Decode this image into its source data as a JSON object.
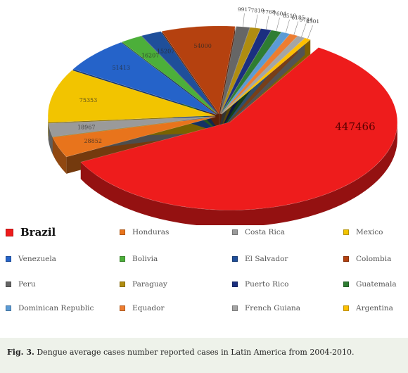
{
  "chart_data": {
    "type": "pie",
    "title": "",
    "categories": [
      "Brazil",
      "Honduras",
      "Costa Rica",
      "Mexico",
      "Venezuela",
      "Bolivia",
      "El Salvador",
      "Colombia",
      "Peru",
      "Paraguay",
      "Puerto Rico",
      "Guatemala",
      "Dominican Republic",
      "Equador",
      "French Guiana",
      "Argentina"
    ],
    "values": [
      447466,
      28852,
      18967,
      75353,
      51413,
      16207,
      15207,
      54000,
      9917,
      7810,
      7768,
      7604,
      6510,
      6185,
      5784,
      4501
    ],
    "value_labels": [
      "447466",
      "28852",
      "18967",
      "75353",
      "51413",
      "16207",
      "15207",
      "54000",
      "9917",
      "7810",
      "7768",
      "7604",
      "6510",
      "6185",
      "5784",
      "4501"
    ],
    "colors": [
      "#ee1c1c",
      "#e8741c",
      "#9a9a9a",
      "#f2c400",
      "#2563c9",
      "#4caf3a",
      "#1f4f9a",
      "#b5410f",
      "#666666",
      "#b08d10",
      "#1b2f80",
      "#2e7d32",
      "#5b9bd5",
      "#ed7d31",
      "#a5a5a5",
      "#ffc000"
    ],
    "legend_position": "bottom",
    "style": "3d-exploded"
  },
  "caption": {
    "label": "Fig. 3.",
    "text": " Dengue average cases number reported cases in Latin America from 2004-2010."
  }
}
